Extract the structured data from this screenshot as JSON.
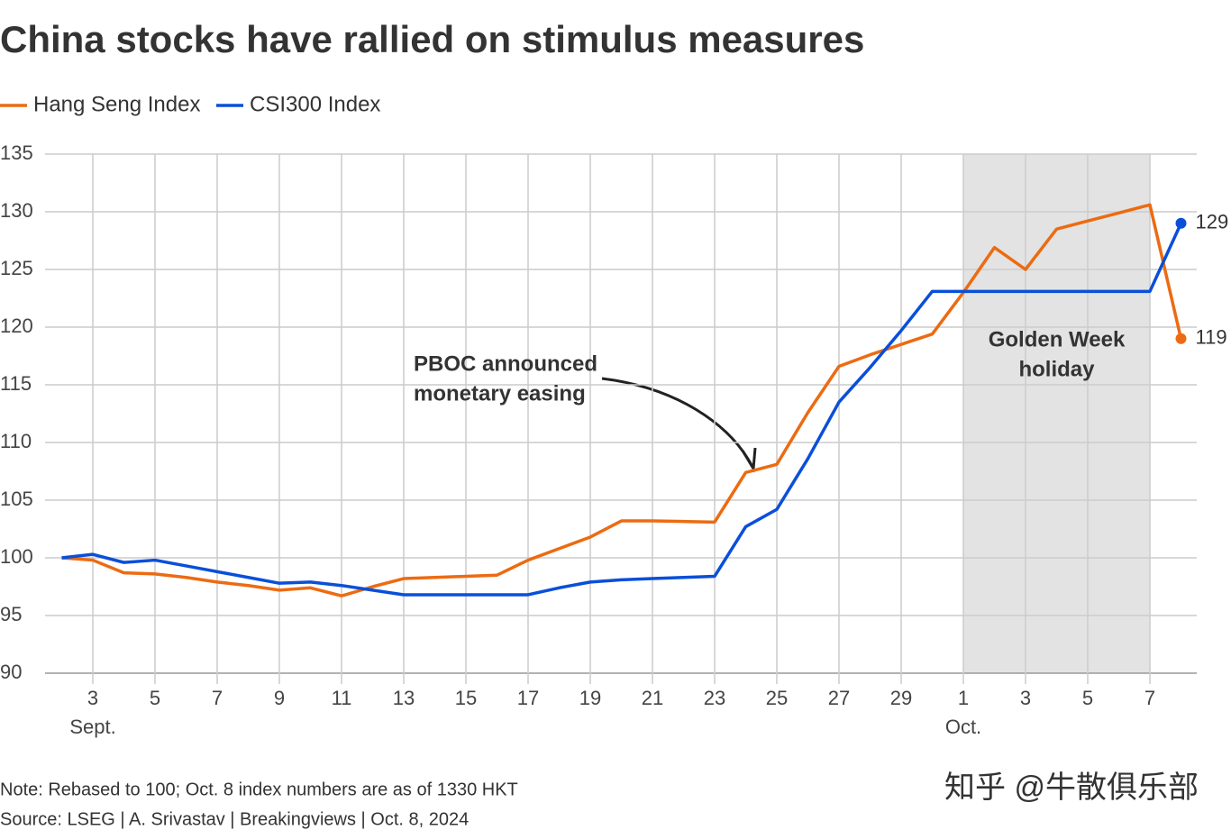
{
  "chart_data": {
    "type": "line",
    "title": "China stocks have rallied on stimulus measures",
    "categories": [
      null,
      "3",
      null,
      "5",
      null,
      "7",
      null,
      "9",
      null,
      "11",
      null,
      "13",
      null,
      "15",
      null,
      "17",
      null,
      "19",
      null,
      "21",
      null,
      "23",
      null,
      "25",
      null,
      "27",
      null,
      "29",
      null,
      "1",
      null,
      "3",
      null,
      "5",
      null,
      "7",
      null
    ],
    "month_labels": [
      "Sept.",
      "Oct."
    ],
    "series": [
      {
        "name": "Hang Seng Index",
        "color": "#ec6b12",
        "end_label": "119",
        "values": [
          100,
          99.8,
          98.7,
          98.6,
          98.3,
          97.9,
          97.6,
          97.2,
          97.4,
          96.7,
          97.5,
          98.2,
          98.3,
          98.4,
          98.5,
          99.8,
          100.8,
          101.8,
          103.2,
          103.2,
          103.15,
          103.1,
          107.4,
          108.1,
          112.6,
          116.6,
          117.6,
          118.5,
          119.4,
          123.0,
          126.9,
          125.0,
          128.5,
          129.2,
          129.9,
          130.6,
          119.0
        ]
      },
      {
        "name": "CSI300 Index",
        "color": "#0a4fd9",
        "end_label": "129",
        "values": [
          100,
          100.3,
          99.6,
          99.8,
          99.3,
          98.8,
          98.3,
          97.8,
          97.9,
          97.6,
          97.2,
          96.8,
          96.8,
          96.8,
          96.8,
          96.8,
          97.4,
          97.9,
          98.1,
          98.2,
          98.3,
          98.4,
          102.7,
          104.2,
          108.6,
          113.5,
          116.5,
          119.7,
          123.1,
          123.1,
          123.1,
          123.1,
          123.1,
          123.1,
          123.1,
          123.1,
          129.0
        ]
      }
    ],
    "ylim": [
      90,
      135
    ],
    "yticks": [
      90,
      95,
      100,
      105,
      110,
      115,
      120,
      125,
      130,
      135
    ],
    "grid": true,
    "annotation": {
      "lines": [
        "PBOC announced",
        "monetary easing"
      ]
    },
    "shade": {
      "from": "1",
      "to": "7",
      "lines": [
        "Golden Week",
        "holiday"
      ]
    },
    "note": "Note: Rebased to 100; Oct. 8 index numbers are as of 1330 HKT",
    "source": "Source: LSEG | A. Srivastav | Breakingviews | Oct. 8, 2024",
    "watermark": "知乎 @牛散俱乐部"
  }
}
